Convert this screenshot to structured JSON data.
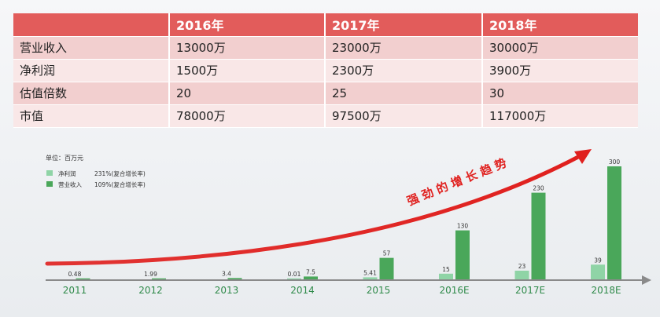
{
  "table": {
    "headers": [
      "",
      "2016年",
      "2017年",
      "2018年"
    ],
    "rows": [
      [
        "营业收入",
        "13000万",
        "23000万",
        "30000万"
      ],
      [
        "净利润",
        "1500万",
        "2300万",
        "3900万"
      ],
      [
        "估值倍数",
        "20",
        "25",
        "30"
      ],
      [
        "市值",
        "78000万",
        "97500万",
        "117000万"
      ]
    ]
  },
  "chart_data": {
    "type": "bar",
    "unit_label": "单位：百万元",
    "categories": [
      "2011",
      "2012",
      "2013",
      "2014",
      "2015",
      "2016E",
      "2017E",
      "2018E"
    ],
    "series": [
      {
        "name": "净利润",
        "growth": "231%(复合增长率)",
        "color": "#8fd4a6",
        "values": [
          null,
          null,
          null,
          0.01,
          5.41,
          15,
          23,
          39
        ],
        "labels": [
          "",
          "",
          "",
          "0.01",
          "5.41",
          "15",
          "23",
          "39"
        ]
      },
      {
        "name": "营业收入",
        "growth": "109%(复合增长率)",
        "color": "#4aa75a",
        "values": [
          0.48,
          1.99,
          3.4,
          7.5,
          57,
          130,
          230,
          300
        ],
        "labels": [
          "0.48",
          "1.99",
          "3.4",
          "7.5",
          "57",
          "130",
          "230",
          "300"
        ]
      }
    ],
    "ylim": [
      0,
      300
    ],
    "grid": false,
    "legend": "top-left",
    "annotation": "强劲的增长趋势",
    "arrow_color": "#e0201e",
    "axis_label_color": "#2f8a4a"
  }
}
